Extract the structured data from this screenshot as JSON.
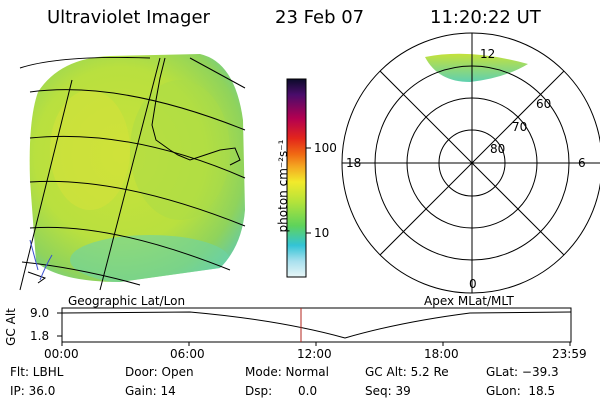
{
  "header": {
    "title": "Ultraviolet Imager",
    "date": "23 Feb 07",
    "time": "11:20:22 UT"
  },
  "geographic_panel": {
    "label": "Geographic Lat/Lon"
  },
  "colorbar": {
    "unit_label": "photon cm⁻²s⁻¹",
    "ticks": [
      "100",
      "10"
    ],
    "colors": [
      "#0b0b2a",
      "#4a0c6b",
      "#b40050",
      "#e3261b",
      "#f06a13",
      "#f4a521",
      "#f2ea2b",
      "#b4e33a",
      "#5fd35a",
      "#33c4d6",
      "#a9e0ee",
      "#e8f6f7"
    ]
  },
  "polar_panel": {
    "label": "Apex MLat/MLT",
    "mlt_labels": {
      "top": "12",
      "left": "18",
      "right": "6",
      "bottom": "0"
    },
    "lat_labels": [
      "60",
      "70",
      "80"
    ]
  },
  "gc_alt": {
    "axis_label": "GC Alt",
    "y_ticks": [
      "9.0",
      "1.8"
    ],
    "x_ticks": [
      "00:00",
      "06:00",
      "12:00",
      "18:00",
      "23:59"
    ],
    "current_time_marker": "11:20"
  },
  "info": {
    "flt": "Flt: LBHL",
    "ip": "IP: 36.0",
    "door": "Door: Open",
    "gain": "Gain: 14",
    "mode": "Mode: Normal",
    "dsp": "Dsp:",
    "dsp_value": "0.0",
    "gc_alt": "GC Alt: 5.2 Re",
    "seq": "Seq: 39",
    "glat": "GLat: −39.3",
    "glon": "GLon:  18.5"
  }
}
